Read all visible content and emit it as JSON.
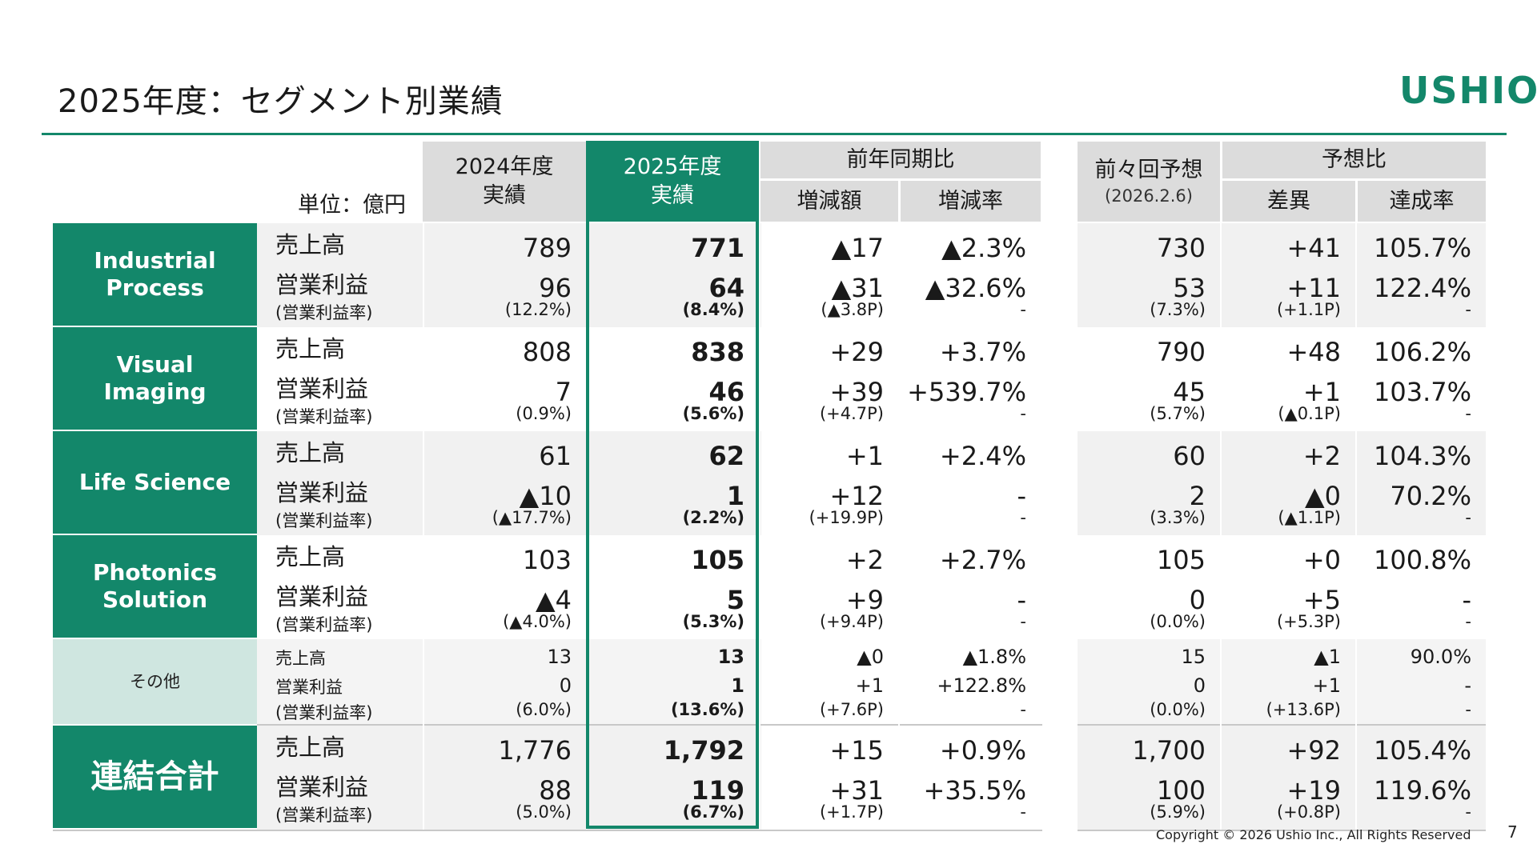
{
  "title": "2025年度：セグメント別業績",
  "logo": "USHIO",
  "unit": "単位：億円",
  "headers": {
    "fy2024": [
      "2024年度",
      "実績"
    ],
    "fy2025": [
      "2025年度",
      "実績"
    ],
    "yoy": "前年同期比",
    "yoy_change": "増減額",
    "yoy_rate": "増減率",
    "prev_forecast": "前々回予想",
    "prev_forecast_date": "(2026.2.6)",
    "vs_forecast": "予想比",
    "diff": "差異",
    "achievement": "達成率"
  },
  "segments": [
    {
      "name": "Industrial Process",
      "sales": {
        "label": "売上高",
        "fy2024": "789",
        "fy2025": "771",
        "chg": "▲17",
        "rate": "▲2.3%",
        "fc": "730",
        "diff": "+41",
        "ach": "105.7%"
      },
      "op": {
        "label": "営業利益",
        "fy2024": "96",
        "fy2025": "64",
        "chg": "▲31",
        "rate": "▲32.6%",
        "fc": "53",
        "diff": "+11",
        "ach": "122.4%"
      },
      "margin": {
        "label": "(営業利益率)",
        "fy2024": "(12.2%)",
        "fy2025": "(8.4%)",
        "chg": "(▲3.8P)",
        "rate": "-",
        "fc": "(7.3%)",
        "diff": "(+1.1P)",
        "ach": "-"
      }
    },
    {
      "name": "Visual Imaging",
      "sales": {
        "label": "売上高",
        "fy2024": "808",
        "fy2025": "838",
        "chg": "+29",
        "rate": "+3.7%",
        "fc": "790",
        "diff": "+48",
        "ach": "106.2%"
      },
      "op": {
        "label": "営業利益",
        "fy2024": "7",
        "fy2025": "46",
        "chg": "+39",
        "rate": "+539.7%",
        "fc": "45",
        "diff": "+1",
        "ach": "103.7%"
      },
      "margin": {
        "label": "(営業利益率)",
        "fy2024": "(0.9%)",
        "fy2025": "(5.6%)",
        "chg": "(+4.7P)",
        "rate": "-",
        "fc": "(5.7%)",
        "diff": "(▲0.1P)",
        "ach": "-"
      }
    },
    {
      "name": "Life Science",
      "sales": {
        "label": "売上高",
        "fy2024": "61",
        "fy2025": "62",
        "chg": "+1",
        "rate": "+2.4%",
        "fc": "60",
        "diff": "+2",
        "ach": "104.3%"
      },
      "op": {
        "label": "営業利益",
        "fy2024": "▲10",
        "fy2025": "1",
        "chg": "+12",
        "rate": "-",
        "fc": "2",
        "diff": "▲0",
        "ach": "70.2%"
      },
      "margin": {
        "label": "(営業利益率)",
        "fy2024": "(▲17.7%)",
        "fy2025": "(2.2%)",
        "chg": "(+19.9P)",
        "rate": "-",
        "fc": "(3.3%)",
        "diff": "(▲1.1P)",
        "ach": "-"
      }
    },
    {
      "name": "Photonics Solution",
      "sales": {
        "label": "売上高",
        "fy2024": "103",
        "fy2025": "105",
        "chg": "+2",
        "rate": "+2.7%",
        "fc": "105",
        "diff": "+0",
        "ach": "100.8%"
      },
      "op": {
        "label": "営業利益",
        "fy2024": "▲4",
        "fy2025": "5",
        "chg": "+9",
        "rate": "-",
        "fc": "0",
        "diff": "+5",
        "ach": "-"
      },
      "margin": {
        "label": "(営業利益率)",
        "fy2024": "(▲4.0%)",
        "fy2025": "(5.3%)",
        "chg": "(+9.4P)",
        "rate": "-",
        "fc": "(0.0%)",
        "diff": "(+5.3P)",
        "ach": "-"
      }
    },
    {
      "name": "その他",
      "sales": {
        "label": "売上高",
        "fy2024": "13",
        "fy2025": "13",
        "chg": "▲0",
        "rate": "▲1.8%",
        "fc": "15",
        "diff": "▲1",
        "ach": "90.0%"
      },
      "op": {
        "label": "営業利益",
        "fy2024": "0",
        "fy2025": "1",
        "chg": "+1",
        "rate": "+122.8%",
        "fc": "0",
        "diff": "+1",
        "ach": "-"
      },
      "margin": {
        "label": "(営業利益率)",
        "fy2024": "(6.0%)",
        "fy2025": "(13.6%)",
        "chg": "(+7.6P)",
        "rate": "-",
        "fc": "(0.0%)",
        "diff": "(+13.6P)",
        "ach": "-"
      }
    },
    {
      "name": "連結合計",
      "sales": {
        "label": "売上高",
        "fy2024": "1,776",
        "fy2025": "1,792",
        "chg": "+15",
        "rate": "+0.9%",
        "fc": "1,700",
        "diff": "+92",
        "ach": "105.4%"
      },
      "op": {
        "label": "営業利益",
        "fy2024": "88",
        "fy2025": "119",
        "chg": "+31",
        "rate": "+35.5%",
        "fc": "100",
        "diff": "+19",
        "ach": "119.6%"
      },
      "margin": {
        "label": "(営業利益率)",
        "fy2024": "(5.0%)",
        "fy2025": "(6.7%)",
        "chg": "(+1.7P)",
        "rate": "-",
        "fc": "(5.9%)",
        "diff": "(+0.8P)",
        "ach": "-"
      }
    }
  ],
  "footer": "Copyright © 2026 Ushio Inc., All Rights Reserved",
  "page_number": "7",
  "colors": {
    "accent": "#13876a",
    "other_segment": "#cfe6e0",
    "header_gray": "#dcdcdc",
    "band_gray": "#f1f1f1"
  }
}
